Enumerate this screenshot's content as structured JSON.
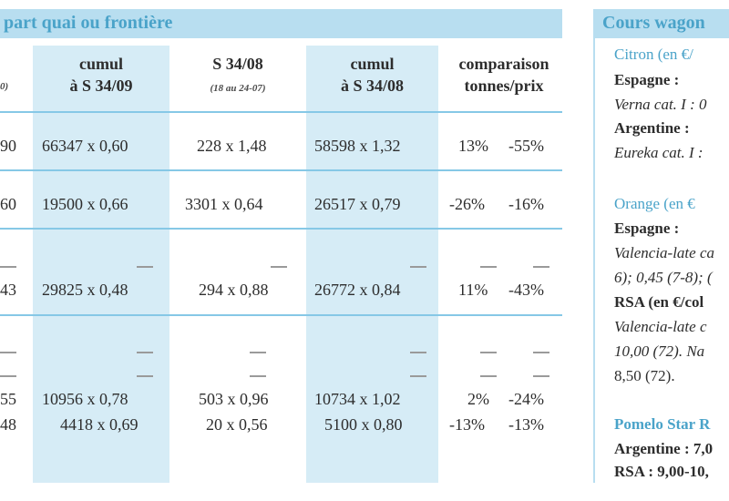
{
  "left_panel": {
    "header": "part quai ou frontière",
    "columns": [
      {
        "label_line1": "",
        "label_line2": "",
        "sub": "0)"
      },
      {
        "label_line1": "cumul",
        "label_line2": "à S 34/09",
        "sub": ""
      },
      {
        "label_line1": "S 34/08",
        "label_line2": "",
        "sub": "(18 au 24-07)"
      },
      {
        "label_line1": "cumul",
        "label_line2": "à S 34/08",
        "sub": ""
      },
      {
        "label_line1": "comparaison",
        "label_line2": "tonnes/prix",
        "sub": ""
      }
    ],
    "rows": [
      {
        "c0": "90",
        "c1": "66347 x 0,60",
        "c2": "228 x 1,48",
        "c3": "58598 x 1,32",
        "c4a": "13%",
        "c4b": "-55%"
      },
      {
        "c0": "60",
        "c1": "19500 x 0,66",
        "c2": "3301 x 0,64",
        "c3": "26517 x 0,79",
        "c4a": "-26%",
        "c4b": "-16%"
      },
      {
        "c0": "43",
        "c1": "29825 x 0,48",
        "c2": "294 x 0,88",
        "c3": "26772 x 0,84",
        "c4a": "11%",
        "c4b": "-43%"
      },
      {
        "c0": "55",
        "c1": "10956 x 0,78",
        "c2": "503 x 0,96",
        "c3": "10734 x 1,02",
        "c4a": "2%",
        "c4b": "-24%"
      },
      {
        "c0": "48",
        "c1": "4418 x 0,69",
        "c2": "20 x 0,56",
        "c3": "5100 x 0,80",
        "c4a": "-13%",
        "c4b": "-13%"
      }
    ]
  },
  "right_panel": {
    "header": "Cours wagon",
    "lines": [
      {
        "text": "Citron (en €/",
        "style": "title"
      },
      {
        "text": "Espagne :",
        "style": "bold"
      },
      {
        "text": "Verna cat. I : 0",
        "style": "italic"
      },
      {
        "text": "Argentine :",
        "style": "bold"
      },
      {
        "text": "Eureka cat. I : ",
        "style": "italic"
      },
      {
        "text": "Orange (en €",
        "style": "title"
      },
      {
        "text": "Espagne :",
        "style": "bold"
      },
      {
        "text": "Valencia-late ca",
        "style": "italic"
      },
      {
        "text": "6); 0,45 (7-8); (",
        "style": "italic"
      },
      {
        "text": "RSA (en €/col",
        "style": "bold"
      },
      {
        "text": "Valencia-late  c",
        "style": "italic"
      },
      {
        "text": "10,00 (72). Na",
        "style": "italic"
      },
      {
        "text": "8,50 (72).",
        "style": "plain"
      },
      {
        "text": "Pomelo Star R",
        "style": "pomelo"
      },
      {
        "text": "Argentine : 7,0",
        "style": "bold"
      },
      {
        "text": "RSA : 9,00-10,",
        "style": "bold"
      }
    ]
  }
}
